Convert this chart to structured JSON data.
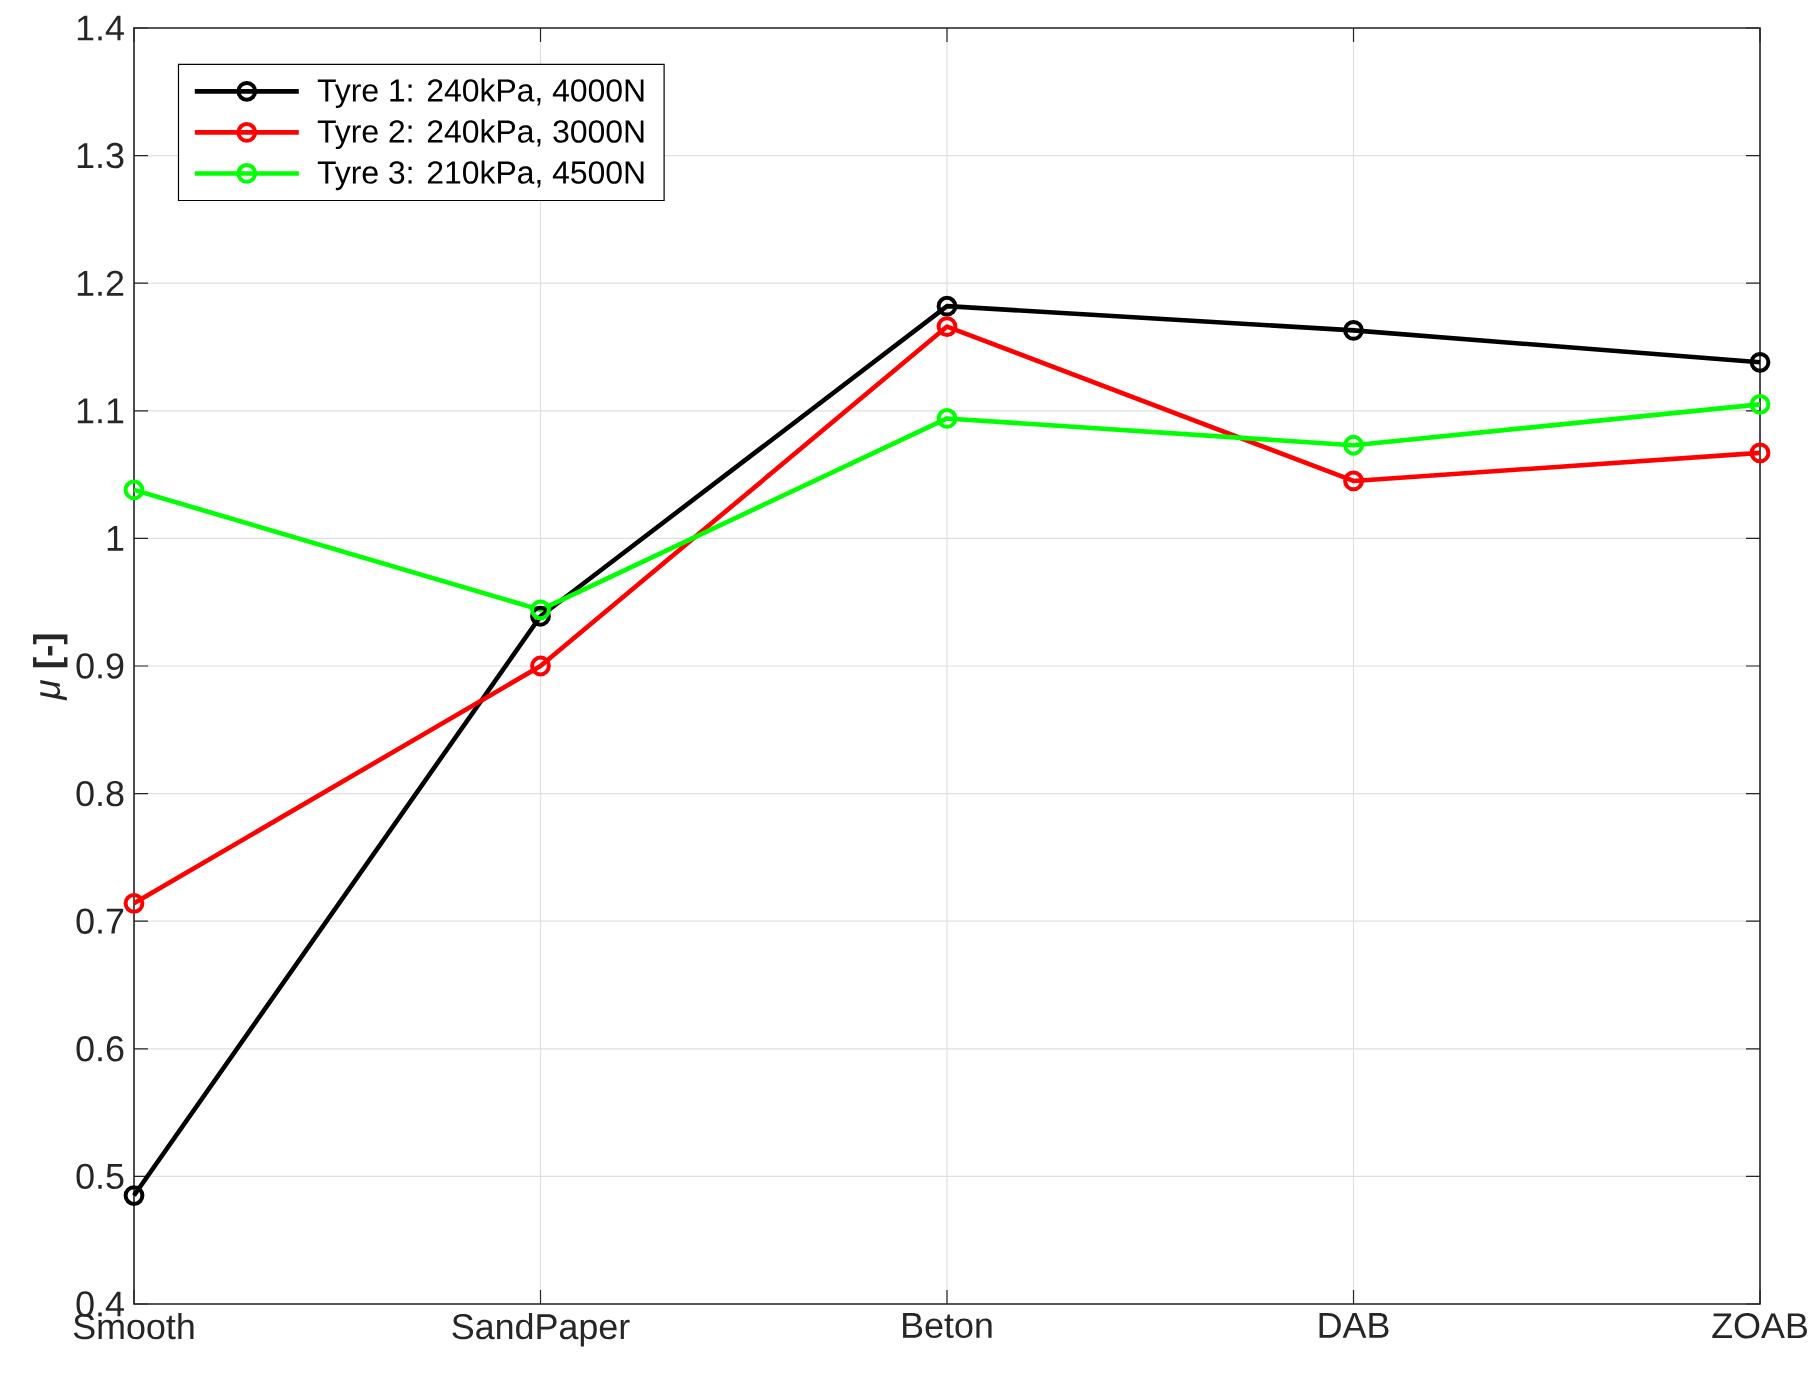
{
  "chart_data": {
    "type": "line",
    "ylabel": "*μ* **[-]**",
    "categories": [
      "Smooth",
      "SandPaper",
      "Beton",
      "DAB",
      "ZOAB"
    ],
    "series": [
      {
        "name": "Tyre 1: 240kPa, 4000N",
        "color": "#000000",
        "values": [
          0.485,
          0.939,
          1.182,
          1.163,
          1.138
        ]
      },
      {
        "name": "Tyre 2: 240kPa, 3000N",
        "color": "#ff0000",
        "values": [
          0.714,
          0.9,
          1.166,
          1.045,
          1.067
        ]
      },
      {
        "name": "Tyre 3: 210kPa, 4500N",
        "color": "#00ff00",
        "values": [
          1.038,
          0.944,
          1.094,
          1.073,
          1.105
        ]
      }
    ],
    "ylim": [
      0.4,
      1.4
    ],
    "yticks": [
      0.4,
      0.5,
      0.6,
      0.7,
      0.8,
      0.9,
      1,
      1.1,
      1.2,
      1.3,
      1.4
    ],
    "grid": true,
    "legend": "top left",
    "marker": "circle",
    "line_style": "solid"
  }
}
